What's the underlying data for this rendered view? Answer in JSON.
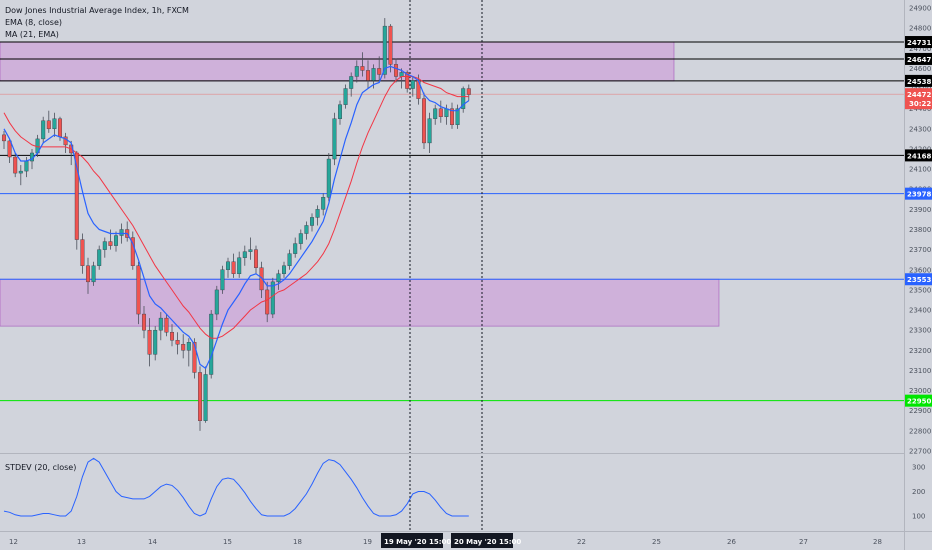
{
  "header": {
    "symbol_title": "Dow Jones Industrial Average Index, 1h, FXCM",
    "ema_label": "EMA (8, close)",
    "ma_label": "MA (21, EMA)",
    "stdev_label": "STDEV (20, close)"
  },
  "chart_data": {
    "type": "candlestick",
    "price_axis": {
      "min": 22700,
      "max": 24900,
      "ticks": [
        "24900",
        "24800",
        "24700",
        "24600",
        "24500",
        "24400",
        "24300",
        "24200",
        "24100",
        "24000",
        "23900",
        "23800",
        "23700",
        "23600",
        "23500",
        "23400",
        "23300",
        "23200",
        "23100",
        "23000",
        "22900",
        "22800",
        "22700"
      ]
    },
    "time_axis": {
      "labels": [
        "12",
        "13",
        "14",
        "15",
        "18",
        "19",
        "20",
        "22",
        "25",
        "26",
        "27",
        "28"
      ],
      "highlighted": [
        "19 May '20   15:00",
        "20 May '20   15:00"
      ]
    },
    "horizontal_levels": [
      {
        "price": 24731,
        "label": "24731",
        "color": "#000000"
      },
      {
        "price": 24647,
        "label": "24647",
        "color": "#000000"
      },
      {
        "price": 24538,
        "label": "24538",
        "color": "#000000"
      },
      {
        "price": 24168,
        "label": "24168",
        "color": "#000000"
      },
      {
        "price": 23978,
        "label": "23978",
        "color": "#2962ff"
      },
      {
        "price": 23553,
        "label": "23553",
        "color": "#2962ff"
      },
      {
        "price": 22950,
        "label": "22950",
        "color": "#00e600"
      }
    ],
    "last_price": {
      "value": 24472,
      "label": "24472",
      "countdown": "30:22",
      "color": "#ef5350"
    },
    "zones": [
      {
        "top": 24731,
        "bottom": 24538,
        "color": "#ce93d8"
      },
      {
        "top": 23553,
        "bottom": 23320,
        "color": "#ce93d8"
      }
    ],
    "candles": [
      [
        24270,
        24290,
        24200,
        24240
      ],
      [
        24240,
        24250,
        24130,
        24160
      ],
      [
        24160,
        24180,
        24060,
        24080
      ],
      [
        24080,
        24120,
        24020,
        24090
      ],
      [
        24090,
        24160,
        24060,
        24140
      ],
      [
        24140,
        24200,
        24100,
        24180
      ],
      [
        24180,
        24270,
        24160,
        24250
      ],
      [
        24250,
        24360,
        24230,
        24340
      ],
      [
        24340,
        24390,
        24280,
        24300
      ],
      [
        24300,
        24380,
        24260,
        24350
      ],
      [
        24350,
        24360,
        24240,
        24260
      ],
      [
        24260,
        24280,
        24180,
        24220
      ],
      [
        24220,
        24240,
        24120,
        24180
      ],
      [
        24180,
        24190,
        23700,
        23750
      ],
      [
        23750,
        23780,
        23580,
        23620
      ],
      [
        23620,
        23660,
        23480,
        23540
      ],
      [
        23540,
        23640,
        23520,
        23620
      ],
      [
        23620,
        23720,
        23600,
        23700
      ],
      [
        23700,
        23760,
        23660,
        23740
      ],
      [
        23740,
        23800,
        23700,
        23720
      ],
      [
        23720,
        23790,
        23690,
        23770
      ],
      [
        23770,
        23830,
        23730,
        23800
      ],
      [
        23800,
        23840,
        23740,
        23760
      ],
      [
        23760,
        23790,
        23600,
        23620
      ],
      [
        23620,
        23640,
        23330,
        23380
      ],
      [
        23380,
        23420,
        23260,
        23300
      ],
      [
        23300,
        23360,
        23120,
        23180
      ],
      [
        23180,
        23320,
        23150,
        23300
      ],
      [
        23300,
        23390,
        23250,
        23360
      ],
      [
        23360,
        23380,
        23270,
        23290
      ],
      [
        23290,
        23330,
        23220,
        23250
      ],
      [
        23250,
        23290,
        23180,
        23230
      ],
      [
        23230,
        23280,
        23160,
        23200
      ],
      [
        23200,
        23260,
        23120,
        23240
      ],
      [
        23240,
        23260,
        23060,
        23090
      ],
      [
        23090,
        23120,
        22800,
        22850
      ],
      [
        22850,
        23120,
        22840,
        23080
      ],
      [
        23080,
        23400,
        23060,
        23380
      ],
      [
        23380,
        23520,
        23350,
        23500
      ],
      [
        23500,
        23620,
        23480,
        23600
      ],
      [
        23600,
        23660,
        23560,
        23640
      ],
      [
        23640,
        23680,
        23560,
        23580
      ],
      [
        23580,
        23690,
        23560,
        23660
      ],
      [
        23660,
        23720,
        23620,
        23690
      ],
      [
        23690,
        23760,
        23650,
        23700
      ],
      [
        23700,
        23720,
        23580,
        23610
      ],
      [
        23610,
        23640,
        23460,
        23500
      ],
      [
        23500,
        23540,
        23340,
        23380
      ],
      [
        23380,
        23560,
        23360,
        23540
      ],
      [
        23540,
        23600,
        23500,
        23580
      ],
      [
        23580,
        23640,
        23560,
        23620
      ],
      [
        23620,
        23700,
        23600,
        23680
      ],
      [
        23680,
        23760,
        23660,
        23730
      ],
      [
        23730,
        23800,
        23700,
        23780
      ],
      [
        23780,
        23840,
        23750,
        23820
      ],
      [
        23820,
        23880,
        23790,
        23860
      ],
      [
        23860,
        23920,
        23820,
        23900
      ],
      [
        23900,
        23980,
        23870,
        23960
      ],
      [
        23960,
        24180,
        23940,
        24150
      ],
      [
        24150,
        24380,
        24120,
        24350
      ],
      [
        24350,
        24440,
        24320,
        24420
      ],
      [
        24420,
        24520,
        24400,
        24500
      ],
      [
        24500,
        24580,
        24460,
        24560
      ],
      [
        24560,
        24640,
        24530,
        24610
      ],
      [
        24610,
        24680,
        24560,
        24590
      ],
      [
        24590,
        24640,
        24500,
        24540
      ],
      [
        24540,
        24620,
        24500,
        24600
      ],
      [
        24600,
        24660,
        24540,
        24570
      ],
      [
        24570,
        24850,
        24550,
        24810
      ],
      [
        24810,
        24820,
        24580,
        24620
      ],
      [
        24620,
        24650,
        24530,
        24560
      ],
      [
        24560,
        24600,
        24500,
        24580
      ],
      [
        24580,
        24590,
        24480,
        24500
      ],
      [
        24500,
        24560,
        24460,
        24540
      ],
      [
        24540,
        24570,
        24420,
        24450
      ],
      [
        24450,
        24480,
        24200,
        24230
      ],
      [
        24230,
        24380,
        24180,
        24350
      ],
      [
        24350,
        24420,
        24320,
        24400
      ],
      [
        24400,
        24440,
        24330,
        24360
      ],
      [
        24360,
        24420,
        24320,
        24400
      ],
      [
        24400,
        24430,
        24300,
        24320
      ],
      [
        24320,
        24420,
        24300,
        24400
      ],
      [
        24400,
        24510,
        24380,
        24500
      ],
      [
        24500,
        24520,
        24440,
        24470
      ]
    ],
    "ema_8": [
      24300,
      24250,
      24180,
      24140,
      24140,
      24150,
      24180,
      24230,
      24250,
      24270,
      24260,
      24250,
      24230,
      24110,
      23990,
      23880,
      23830,
      23800,
      23790,
      23780,
      23780,
      23780,
      23780,
      23730,
      23650,
      23560,
      23470,
      23430,
      23410,
      23380,
      23350,
      23320,
      23290,
      23270,
      23230,
      23130,
      23110,
      23170,
      23250,
      23330,
      23400,
      23440,
      23480,
      23530,
      23570,
      23580,
      23560,
      23520,
      23520,
      23530,
      23550,
      23580,
      23620,
      23660,
      23700,
      23740,
      23790,
      23840,
      23930,
      24050,
      24150,
      24250,
      24330,
      24420,
      24480,
      24500,
      24520,
      24530,
      24600,
      24610,
      24600,
      24590,
      24570,
      24560,
      24540,
      24470,
      24440,
      24430,
      24410,
      24400,
      24390,
      24390,
      24420,
      24440
    ],
    "ma_21": [
      24380,
      24330,
      24290,
      24260,
      24240,
      24220,
      24210,
      24210,
      24210,
      24210,
      24210,
      24210,
      24200,
      24180,
      24160,
      24130,
      24090,
      24060,
      24020,
      23980,
      23940,
      23900,
      23860,
      23820,
      23770,
      23720,
      23670,
      23620,
      23580,
      23540,
      23500,
      23460,
      23420,
      23390,
      23350,
      23310,
      23280,
      23260,
      23260,
      23270,
      23290,
      23310,
      23340,
      23370,
      23400,
      23420,
      23440,
      23450,
      23470,
      23490,
      23500,
      23520,
      23540,
      23560,
      23580,
      23610,
      23640,
      23680,
      23730,
      23800,
      23880,
      23960,
      24040,
      24130,
      24210,
      24280,
      24340,
      24400,
      24460,
      24510,
      24540,
      24560,
      24560,
      24560,
      24550,
      24530,
      24520,
      24510,
      24500,
      24480,
      24470,
      24460,
      24460,
      24460
    ],
    "stdev_20": {
      "axis_ticks": [
        "300",
        "200",
        "100"
      ],
      "min": 50,
      "max": 350,
      "values": [
        120,
        115,
        105,
        100,
        100,
        100,
        105,
        110,
        110,
        105,
        100,
        100,
        120,
        180,
        260,
        320,
        335,
        320,
        280,
        240,
        200,
        180,
        175,
        170,
        170,
        170,
        180,
        200,
        220,
        230,
        225,
        205,
        175,
        140,
        110,
        100,
        110,
        170,
        220,
        250,
        255,
        250,
        225,
        195,
        160,
        130,
        105,
        100,
        100,
        100,
        100,
        110,
        130,
        160,
        190,
        230,
        275,
        315,
        330,
        325,
        310,
        280,
        250,
        215,
        175,
        140,
        110,
        100,
        100,
        100,
        105,
        120,
        150,
        190,
        200,
        200,
        190,
        165,
        135,
        110,
        100,
        100,
        100,
        100
      ]
    }
  }
}
